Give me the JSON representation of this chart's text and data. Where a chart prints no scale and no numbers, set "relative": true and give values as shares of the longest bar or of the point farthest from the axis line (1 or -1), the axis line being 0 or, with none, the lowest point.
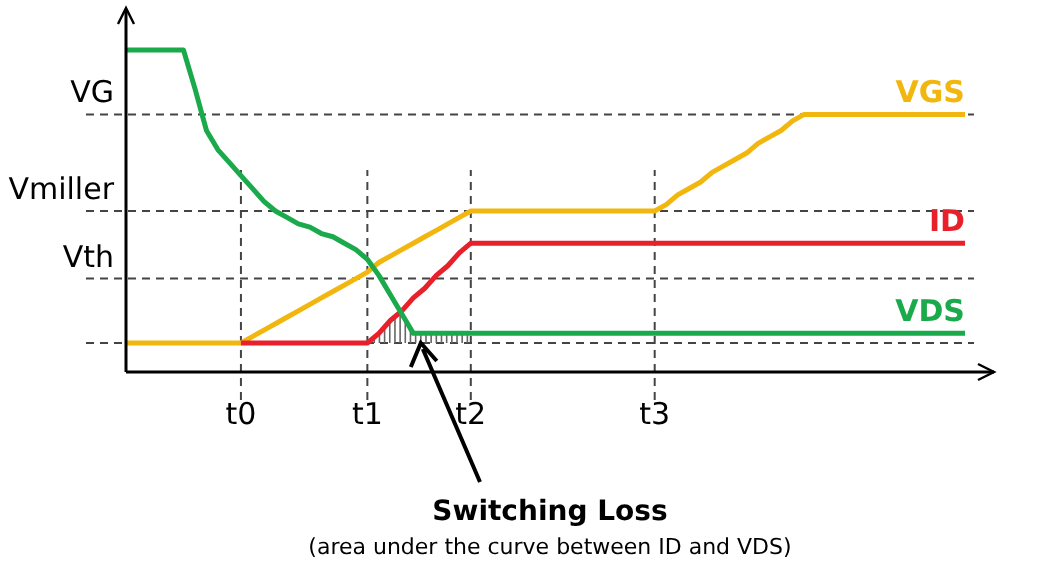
{
  "chart_data": {
    "type": "line",
    "relative": true,
    "categories": [
      null,
      null,
      null,
      null,
      null,
      null,
      null,
      null,
      null,
      null,
      "t0",
      null,
      null,
      null,
      null,
      null,
      null,
      null,
      null,
      null,
      null,
      "t1",
      null,
      null,
      null,
      null,
      null,
      null,
      null,
      null,
      "t2",
      null,
      null,
      null,
      null,
      null,
      null,
      null,
      null,
      null,
      null,
      null,
      null,
      null,
      null,
      null,
      "t3",
      null,
      null,
      null,
      null,
      null,
      null,
      null,
      null,
      null,
      null,
      null,
      null,
      null,
      null,
      null,
      null,
      null,
      null,
      null,
      null,
      null,
      null,
      null,
      null,
      null,
      null,
      null,
      null,
      null
    ],
    "series": [
      {
        "name": "VGS",
        "color": "#f2b70f",
        "values": [
          0.09,
          0.09,
          0.09,
          0.09,
          0.09,
          0.09,
          0.09,
          0.09,
          0.09,
          0.09,
          0.09,
          0.11,
          0.13,
          0.15,
          0.17,
          0.19,
          0.21,
          0.23,
          0.25,
          0.27,
          0.29,
          0.31,
          0.34,
          0.36,
          0.38,
          0.4,
          0.42,
          0.44,
          0.46,
          0.48,
          0.5,
          0.5,
          0.5,
          0.5,
          0.5,
          0.5,
          0.5,
          0.5,
          0.5,
          0.5,
          0.5,
          0.5,
          0.5,
          0.5,
          0.5,
          0.5,
          0.5,
          0.52,
          0.55,
          0.57,
          0.59,
          0.62,
          0.64,
          0.66,
          0.68,
          0.71,
          0.73,
          0.75,
          0.78,
          0.8,
          0.8,
          0.8,
          0.8,
          0.8,
          0.8,
          0.8,
          0.8,
          0.8,
          0.8,
          0.8,
          0.8,
          0.8,
          0.8,
          0.8,
          null,
          null
        ]
      },
      {
        "name": "ID",
        "color": "#e8202a",
        "values": [
          null,
          null,
          null,
          null,
          null,
          null,
          null,
          null,
          null,
          null,
          0.09,
          0.09,
          0.09,
          0.09,
          0.09,
          0.09,
          0.09,
          0.09,
          0.09,
          0.09,
          0.09,
          0.09,
          0.12,
          0.16,
          0.19,
          0.23,
          0.26,
          0.3,
          0.33,
          0.37,
          0.4,
          0.4,
          0.4,
          0.4,
          0.4,
          0.4,
          0.4,
          0.4,
          0.4,
          0.4,
          0.4,
          0.4,
          0.4,
          0.4,
          0.4,
          0.4,
          0.4,
          0.4,
          0.4,
          0.4,
          0.4,
          0.4,
          0.4,
          0.4,
          0.4,
          0.4,
          0.4,
          0.4,
          0.4,
          0.4,
          0.4,
          0.4,
          0.4,
          0.4,
          0.4,
          0.4,
          0.4,
          0.4,
          0.4,
          0.4,
          0.4,
          0.4,
          0.4,
          0.4,
          null,
          null
        ]
      },
      {
        "name": "VDS",
        "color": "#1aaa4b",
        "values": [
          1,
          1,
          1,
          1,
          1,
          1,
          0.88,
          0.75,
          0.69,
          0.65,
          0.61,
          0.57,
          0.53,
          0.5,
          0.48,
          0.46,
          0.45,
          0.43,
          0.42,
          0.4,
          0.38,
          0.35,
          0.3,
          0.24,
          0.18,
          0.12,
          0.12,
          0.12,
          0.12,
          0.12,
          0.12,
          0.12,
          0.12,
          0.12,
          0.12,
          0.12,
          0.12,
          0.12,
          0.12,
          0.12,
          0.12,
          0.12,
          0.12,
          0.12,
          0.12,
          0.12,
          0.12,
          0.12,
          0.12,
          0.12,
          0.12,
          0.12,
          0.12,
          0.12,
          0.12,
          0.12,
          0.12,
          0.12,
          0.12,
          0.12,
          0.12,
          0.12,
          0.12,
          0.12,
          0.12,
          0.12,
          0.12,
          0.12,
          0.12,
          0.12,
          0.12,
          0.12,
          0.12,
          0.12,
          null,
          null
        ]
      }
    ],
    "ref_lines": [
      {
        "axis": "y",
        "value": 0.8,
        "label": "VG"
      },
      {
        "axis": "y",
        "value": 0.5,
        "label": "Vmiller"
      },
      {
        "axis": "y",
        "value": 0.29,
        "label": "Vth"
      },
      {
        "axis": "y",
        "value": 0.09,
        "label": null
      }
    ],
    "annotations": [
      "Switching Loss",
      "(area under the curve between ID and VDS)"
    ],
    "grid": "x",
    "legend": false,
    "marker": "none",
    "line_style": "solid"
  }
}
